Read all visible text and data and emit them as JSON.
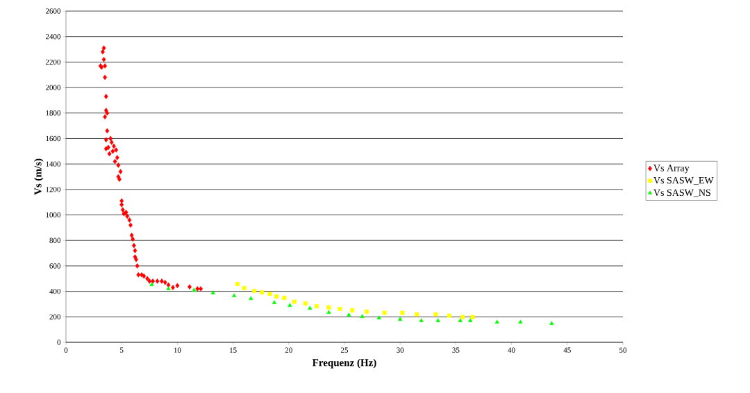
{
  "chart_data": {
    "type": "scatter",
    "xlabel": "Frequenz (Hz)",
    "ylabel": "Vs (m/s)",
    "xlim": [
      0,
      50
    ],
    "xticks": [
      0,
      5,
      10,
      15,
      20,
      25,
      30,
      35,
      40,
      45,
      50
    ],
    "ylim": [
      0,
      2600
    ],
    "yticks": [
      0,
      200,
      400,
      600,
      800,
      1000,
      1200,
      1400,
      1600,
      1800,
      2000,
      2200,
      2400,
      2600
    ],
    "grid": "y",
    "legend": "right",
    "series": [
      {
        "name": "Vs Array",
        "color": "#ff0000",
        "marker": "diamond",
        "x": [
          3.4,
          3.3,
          3.1,
          3.2,
          3.4,
          3.5,
          3.5,
          3.6,
          3.6,
          3.7,
          3.5,
          3.7,
          3.6,
          3.8,
          3.6,
          3.9,
          4.0,
          4.1,
          4.2,
          4.3,
          4.4,
          4.5,
          4.6,
          4.7,
          4.7,
          4.8,
          4.9,
          5.0,
          5.0,
          5.1,
          5.2,
          5.4,
          5.5,
          5.7,
          5.8,
          5.9,
          6.0,
          6.1,
          6.2,
          6.2,
          6.3,
          6.4,
          6.5,
          6.8,
          7.0,
          7.3,
          7.5,
          7.8,
          8.2,
          8.6,
          8.9,
          9.2,
          9.6,
          10.0,
          11.1,
          11.8,
          12.1
        ],
        "values": [
          2310,
          2280,
          2170,
          2160,
          2220,
          2170,
          2080,
          1930,
          1820,
          1800,
          1770,
          1660,
          1590,
          1530,
          1520,
          1480,
          1600,
          1570,
          1500,
          1540,
          1420,
          1510,
          1450,
          1390,
          1300,
          1280,
          1340,
          1110,
          1080,
          1040,
          1010,
          1020,
          990,
          960,
          920,
          840,
          810,
          760,
          720,
          670,
          650,
          600,
          530,
          530,
          520,
          500,
          480,
          480,
          480,
          480,
          470,
          450,
          430,
          445,
          435,
          420,
          420
        ]
      },
      {
        "name": "Vs SASW_EW",
        "color": "#ffff00",
        "marker": "square",
        "x": [
          15.4,
          16.0,
          16.9,
          17.6,
          18.3,
          18.9,
          19.6,
          20.5,
          21.5,
          22.5,
          23.6,
          24.6,
          25.7,
          27.0,
          28.6,
          30.2,
          31.5,
          33.2,
          34.4,
          35.6,
          36.5
        ],
        "values": [
          458,
          425,
          403,
          392,
          381,
          360,
          349,
          318,
          305,
          283,
          274,
          262,
          251,
          241,
          231,
          231,
          220,
          220,
          209,
          198,
          198
        ]
      },
      {
        "name": "Vs SASW_NS",
        "color": "#00ff00",
        "marker": "triangle",
        "x": [
          7.7,
          9.2,
          11.5,
          13.2,
          15.1,
          16.6,
          18.7,
          20.1,
          21.9,
          23.6,
          25.4,
          26.6,
          28.1,
          30.0,
          31.9,
          33.4,
          35.4,
          36.3,
          38.7,
          40.8,
          43.6
        ],
        "values": [
          452,
          420,
          409,
          387,
          365,
          343,
          311,
          289,
          267,
          234,
          213,
          202,
          191,
          180,
          169,
          169,
          169,
          169,
          158,
          158,
          147
        ]
      }
    ]
  }
}
